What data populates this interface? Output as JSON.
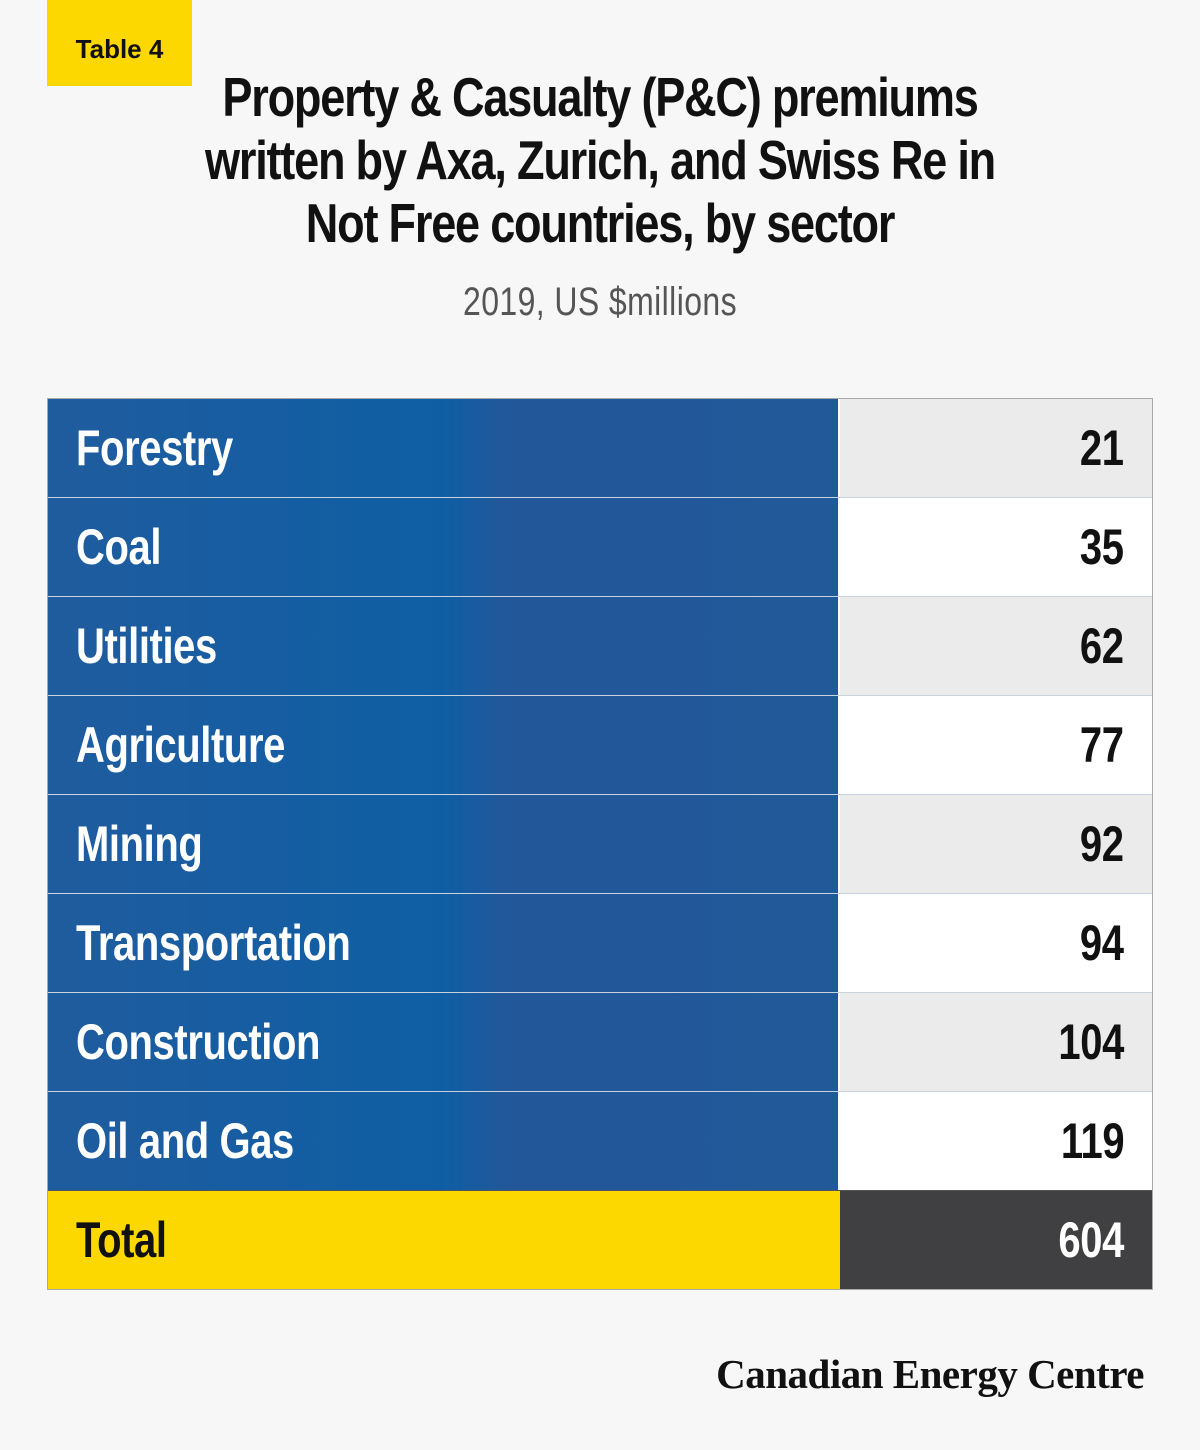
{
  "tag": "Table 4",
  "title": "Property & Casualty (P&C) premiums written by Axa, Zurich, and Swiss Re in Not Free countries, by sector",
  "subtitle": "2019, US $millions",
  "colors": {
    "label_fill": "#1f5c9e",
    "total_label_fill": "#fdd700",
    "total_value_fill": "#404042",
    "tag_fill": "#fdd700"
  },
  "chart_data": {
    "type": "table",
    "title": "Property & Casualty (P&C) premiums written by Axa, Zurich, and Swiss Re in Not Free countries, by sector",
    "subtitle": "2019, US $millions",
    "rows": [
      {
        "label": "Forestry",
        "value": "21"
      },
      {
        "label": "Coal",
        "value": "35"
      },
      {
        "label": "Utilities",
        "value": "62"
      },
      {
        "label": "Agriculture",
        "value": "77"
      },
      {
        "label": "Mining",
        "value": "92"
      },
      {
        "label": "Transportation",
        "value": "94"
      },
      {
        "label": "Construction",
        "value": "104"
      },
      {
        "label": "Oil and Gas",
        "value": "119"
      }
    ],
    "total": {
      "label": "Total",
      "value": "604"
    }
  },
  "footer": {
    "brand": "Canadian Energy Centre"
  }
}
